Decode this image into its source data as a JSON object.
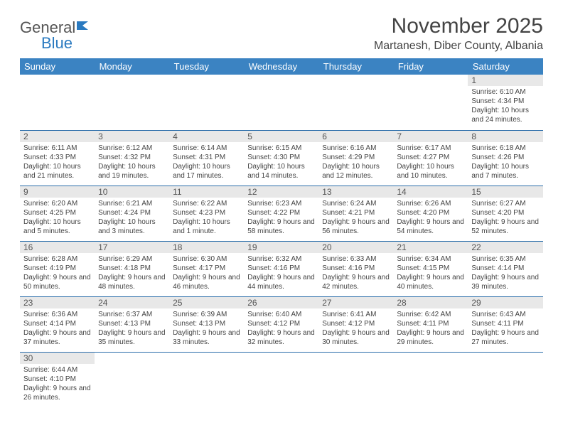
{
  "logo": {
    "part1": "General",
    "part2": "Blue"
  },
  "title": "November 2025",
  "location": "Martanesh, Diber County, Albania",
  "colors": {
    "header_bg": "#3b83c2",
    "header_text": "#ffffff",
    "daynum_bg": "#e8e8e8",
    "border": "#2a6daa",
    "logo_accent": "#2a7ac0"
  },
  "weekdays": [
    "Sunday",
    "Monday",
    "Tuesday",
    "Wednesday",
    "Thursday",
    "Friday",
    "Saturday"
  ],
  "weeks": [
    [
      null,
      null,
      null,
      null,
      null,
      null,
      {
        "n": "1",
        "sr": "Sunrise: 6:10 AM",
        "ss": "Sunset: 4:34 PM",
        "dl": "Daylight: 10 hours and 24 minutes."
      }
    ],
    [
      {
        "n": "2",
        "sr": "Sunrise: 6:11 AM",
        "ss": "Sunset: 4:33 PM",
        "dl": "Daylight: 10 hours and 21 minutes."
      },
      {
        "n": "3",
        "sr": "Sunrise: 6:12 AM",
        "ss": "Sunset: 4:32 PM",
        "dl": "Daylight: 10 hours and 19 minutes."
      },
      {
        "n": "4",
        "sr": "Sunrise: 6:14 AM",
        "ss": "Sunset: 4:31 PM",
        "dl": "Daylight: 10 hours and 17 minutes."
      },
      {
        "n": "5",
        "sr": "Sunrise: 6:15 AM",
        "ss": "Sunset: 4:30 PM",
        "dl": "Daylight: 10 hours and 14 minutes."
      },
      {
        "n": "6",
        "sr": "Sunrise: 6:16 AM",
        "ss": "Sunset: 4:29 PM",
        "dl": "Daylight: 10 hours and 12 minutes."
      },
      {
        "n": "7",
        "sr": "Sunrise: 6:17 AM",
        "ss": "Sunset: 4:27 PM",
        "dl": "Daylight: 10 hours and 10 minutes."
      },
      {
        "n": "8",
        "sr": "Sunrise: 6:18 AM",
        "ss": "Sunset: 4:26 PM",
        "dl": "Daylight: 10 hours and 7 minutes."
      }
    ],
    [
      {
        "n": "9",
        "sr": "Sunrise: 6:20 AM",
        "ss": "Sunset: 4:25 PM",
        "dl": "Daylight: 10 hours and 5 minutes."
      },
      {
        "n": "10",
        "sr": "Sunrise: 6:21 AM",
        "ss": "Sunset: 4:24 PM",
        "dl": "Daylight: 10 hours and 3 minutes."
      },
      {
        "n": "11",
        "sr": "Sunrise: 6:22 AM",
        "ss": "Sunset: 4:23 PM",
        "dl": "Daylight: 10 hours and 1 minute."
      },
      {
        "n": "12",
        "sr": "Sunrise: 6:23 AM",
        "ss": "Sunset: 4:22 PM",
        "dl": "Daylight: 9 hours and 58 minutes."
      },
      {
        "n": "13",
        "sr": "Sunrise: 6:24 AM",
        "ss": "Sunset: 4:21 PM",
        "dl": "Daylight: 9 hours and 56 minutes."
      },
      {
        "n": "14",
        "sr": "Sunrise: 6:26 AM",
        "ss": "Sunset: 4:20 PM",
        "dl": "Daylight: 9 hours and 54 minutes."
      },
      {
        "n": "15",
        "sr": "Sunrise: 6:27 AM",
        "ss": "Sunset: 4:20 PM",
        "dl": "Daylight: 9 hours and 52 minutes."
      }
    ],
    [
      {
        "n": "16",
        "sr": "Sunrise: 6:28 AM",
        "ss": "Sunset: 4:19 PM",
        "dl": "Daylight: 9 hours and 50 minutes."
      },
      {
        "n": "17",
        "sr": "Sunrise: 6:29 AM",
        "ss": "Sunset: 4:18 PM",
        "dl": "Daylight: 9 hours and 48 minutes."
      },
      {
        "n": "18",
        "sr": "Sunrise: 6:30 AM",
        "ss": "Sunset: 4:17 PM",
        "dl": "Daylight: 9 hours and 46 minutes."
      },
      {
        "n": "19",
        "sr": "Sunrise: 6:32 AM",
        "ss": "Sunset: 4:16 PM",
        "dl": "Daylight: 9 hours and 44 minutes."
      },
      {
        "n": "20",
        "sr": "Sunrise: 6:33 AM",
        "ss": "Sunset: 4:16 PM",
        "dl": "Daylight: 9 hours and 42 minutes."
      },
      {
        "n": "21",
        "sr": "Sunrise: 6:34 AM",
        "ss": "Sunset: 4:15 PM",
        "dl": "Daylight: 9 hours and 40 minutes."
      },
      {
        "n": "22",
        "sr": "Sunrise: 6:35 AM",
        "ss": "Sunset: 4:14 PM",
        "dl": "Daylight: 9 hours and 39 minutes."
      }
    ],
    [
      {
        "n": "23",
        "sr": "Sunrise: 6:36 AM",
        "ss": "Sunset: 4:14 PM",
        "dl": "Daylight: 9 hours and 37 minutes."
      },
      {
        "n": "24",
        "sr": "Sunrise: 6:37 AM",
        "ss": "Sunset: 4:13 PM",
        "dl": "Daylight: 9 hours and 35 minutes."
      },
      {
        "n": "25",
        "sr": "Sunrise: 6:39 AM",
        "ss": "Sunset: 4:13 PM",
        "dl": "Daylight: 9 hours and 33 minutes."
      },
      {
        "n": "26",
        "sr": "Sunrise: 6:40 AM",
        "ss": "Sunset: 4:12 PM",
        "dl": "Daylight: 9 hours and 32 minutes."
      },
      {
        "n": "27",
        "sr": "Sunrise: 6:41 AM",
        "ss": "Sunset: 4:12 PM",
        "dl": "Daylight: 9 hours and 30 minutes."
      },
      {
        "n": "28",
        "sr": "Sunrise: 6:42 AM",
        "ss": "Sunset: 4:11 PM",
        "dl": "Daylight: 9 hours and 29 minutes."
      },
      {
        "n": "29",
        "sr": "Sunrise: 6:43 AM",
        "ss": "Sunset: 4:11 PM",
        "dl": "Daylight: 9 hours and 27 minutes."
      }
    ],
    [
      {
        "n": "30",
        "sr": "Sunrise: 6:44 AM",
        "ss": "Sunset: 4:10 PM",
        "dl": "Daylight: 9 hours and 26 minutes."
      },
      null,
      null,
      null,
      null,
      null,
      null
    ]
  ]
}
